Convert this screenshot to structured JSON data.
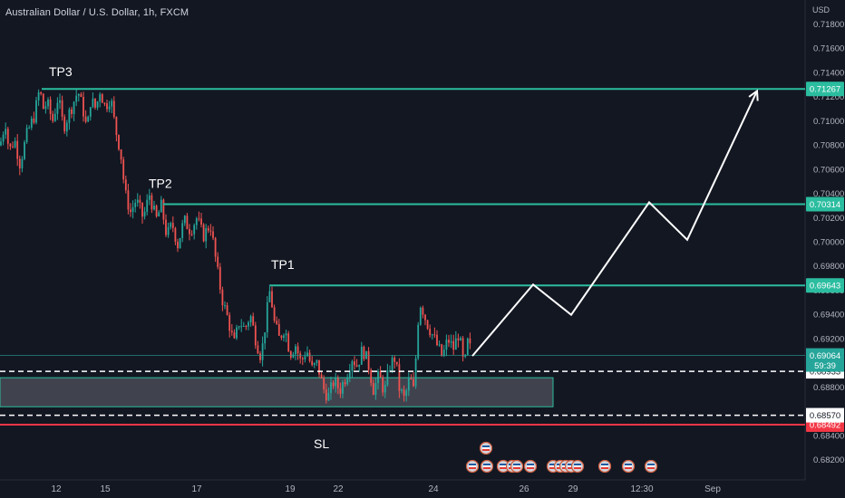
{
  "header": {
    "title": "Australian Dollar / U.S. Dollar, 1h, FXCM",
    "currency": "USD"
  },
  "colors": {
    "background": "#131722",
    "up": "#26a69a",
    "down": "#ef5350",
    "target": "#2bbd9f",
    "stop": "#f23645",
    "projection": "#ffffff",
    "zone_fill": "#787b86"
  },
  "icons": [
    "event-flag-icon"
  ],
  "chart_data": {
    "type": "candlestick",
    "title": "Australian Dollar / U.S. Dollar, 1h, FXCM",
    "ylim": [
      0.681,
      0.72
    ],
    "y_ticks": [
      "0.71800",
      "0.71600",
      "0.71400",
      "0.71200",
      "0.71000",
      "0.70800",
      "0.70600",
      "0.70400",
      "0.70200",
      "0.70000",
      "0.69800",
      "0.69600",
      "0.69400",
      "0.69200",
      "0.69000",
      "0.68800",
      "0.68600",
      "0.68400",
      "0.68200"
    ],
    "x_ticks": [
      "12",
      "15",
      "17",
      "19",
      "22",
      "24",
      "26",
      "29",
      "12:30",
      "Sep"
    ],
    "price_path": [
      [
        0,
        0.708
      ],
      [
        6,
        0.71
      ],
      [
        10,
        0.7075
      ],
      [
        16,
        0.7085
      ],
      [
        22,
        0.7065
      ],
      [
        30,
        0.709
      ],
      [
        38,
        0.7105
      ],
      [
        44,
        0.7128
      ],
      [
        47,
        0.711
      ],
      [
        52,
        0.7115
      ],
      [
        58,
        0.71
      ],
      [
        64,
        0.712
      ],
      [
        70,
        0.7095
      ],
      [
        78,
        0.711
      ],
      [
        86,
        0.7125
      ],
      [
        92,
        0.7108
      ],
      [
        96,
        0.7092
      ],
      [
        100,
        0.7118
      ],
      [
        106,
        0.711
      ],
      [
        110,
        0.7126
      ],
      [
        116,
        0.7112
      ],
      [
        122,
        0.712
      ],
      [
        127,
        0.7095
      ],
      [
        133,
        0.7075
      ],
      [
        138,
        0.704
      ],
      [
        144,
        0.7025
      ],
      [
        150,
        0.7035
      ],
      [
        158,
        0.702
      ],
      [
        165,
        0.704
      ],
      [
        172,
        0.7018
      ],
      [
        178,
        0.703
      ],
      [
        184,
        0.7005
      ],
      [
        190,
        0.7015
      ],
      [
        196,
        0.6998
      ],
      [
        203,
        0.7018
      ],
      [
        210,
        0.701
      ],
      [
        217,
        0.702
      ],
      [
        224,
        0.7005
      ],
      [
        232,
        0.7015
      ],
      [
        236,
        0.6995
      ],
      [
        241,
        0.697
      ],
      [
        246,
        0.695
      ],
      [
        252,
        0.6935
      ],
      [
        258,
        0.6915
      ],
      [
        264,
        0.6935
      ],
      [
        270,
        0.6928
      ],
      [
        276,
        0.694
      ],
      [
        282,
        0.692
      ],
      [
        288,
        0.6905
      ],
      [
        294,
        0.694
      ],
      [
        298,
        0.6962
      ],
      [
        302,
        0.6935
      ],
      [
        308,
        0.692
      ],
      [
        314,
        0.693
      ],
      [
        320,
        0.6908
      ],
      [
        326,
        0.6915
      ],
      [
        332,
        0.69
      ],
      [
        338,
        0.6912
      ],
      [
        344,
        0.6895
      ],
      [
        350,
        0.69
      ],
      [
        356,
        0.688
      ],
      [
        362,
        0.6872
      ],
      [
        368,
        0.6885
      ],
      [
        375,
        0.6878
      ],
      [
        382,
        0.689
      ],
      [
        388,
        0.6905
      ],
      [
        394,
        0.6898
      ],
      [
        400,
        0.6912
      ],
      [
        406,
        0.69
      ],
      [
        412,
        0.6878
      ],
      [
        418,
        0.689
      ],
      [
        424,
        0.6876
      ],
      [
        430,
        0.6898
      ],
      [
        436,
        0.6905
      ],
      [
        440,
        0.688
      ],
      [
        446,
        0.687
      ],
      [
        452,
        0.6888
      ],
      [
        457,
        0.6875
      ],
      [
        460,
        0.693
      ],
      [
        464,
        0.695
      ],
      [
        470,
        0.6935
      ],
      [
        476,
        0.6925
      ],
      [
        482,
        0.6915
      ],
      [
        488,
        0.6905
      ],
      [
        494,
        0.692
      ],
      [
        500,
        0.6912
      ],
      [
        506,
        0.6925
      ],
      [
        512,
        0.6895
      ],
      [
        516,
        0.6918
      ],
      [
        521,
        0.6906
      ]
    ],
    "levels": [
      {
        "name": "TP3",
        "price": "0.71267",
        "value": 0.71267,
        "color": "#2bbd9f"
      },
      {
        "name": "TP2",
        "price": "0.70314",
        "value": 0.70314,
        "color": "#2bbd9f"
      },
      {
        "name": "TP1",
        "price": "0.69643",
        "value": 0.69643,
        "color": "#2bbd9f"
      },
      {
        "name": "SL",
        "price": "0.68492",
        "value": 0.68492,
        "color": "#f23645"
      }
    ],
    "dashed_levels": [
      {
        "price": "0.68933",
        "value": 0.68933
      },
      {
        "price": "0.68570",
        "value": 0.6857
      }
    ],
    "current": {
      "price": "0.69064",
      "value": 0.69064,
      "countdown": "59:39"
    },
    "zone": {
      "from": 0.6864,
      "to": 0.6888
    },
    "projection": [
      [
        521,
        0.6906
      ],
      [
        588,
        0.6965
      ],
      [
        630,
        0.694
      ],
      [
        716,
        0.7033
      ],
      [
        758,
        0.7002
      ],
      [
        835,
        0.7125
      ]
    ]
  }
}
